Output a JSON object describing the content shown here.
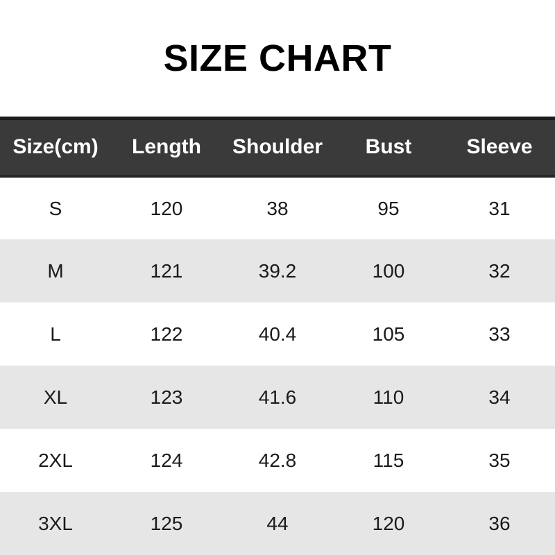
{
  "page_title": "SIZE CHART",
  "colors": {
    "title_text": "#000000",
    "header_background": "#3a3a3a",
    "header_border_top": "#1c1c1c",
    "header_border_bottom": "#262626",
    "header_text": "#ffffff",
    "row_white": "#ffffff",
    "row_gray": "#e6e6e6",
    "cell_text": "#1a1a1a"
  },
  "chart_data": {
    "type": "table",
    "title": "SIZE CHART",
    "unit_label": "cm",
    "columns": [
      "Size(cm)",
      "Length",
      "Shoulder",
      "Bust",
      "Sleeve"
    ],
    "rows": [
      [
        "S",
        120,
        38,
        95,
        31
      ],
      [
        "M",
        121,
        39.2,
        100,
        32
      ],
      [
        "L",
        122,
        40.4,
        105,
        33
      ],
      [
        "XL",
        123,
        41.6,
        110,
        34
      ],
      [
        "2XL",
        124,
        42.8,
        115,
        35
      ],
      [
        "3XL",
        125,
        44,
        120,
        36
      ]
    ],
    "layout": {
      "header_style": "dark-bar",
      "row_striping": "white-gray-alternating",
      "text_alignment": "center"
    }
  }
}
